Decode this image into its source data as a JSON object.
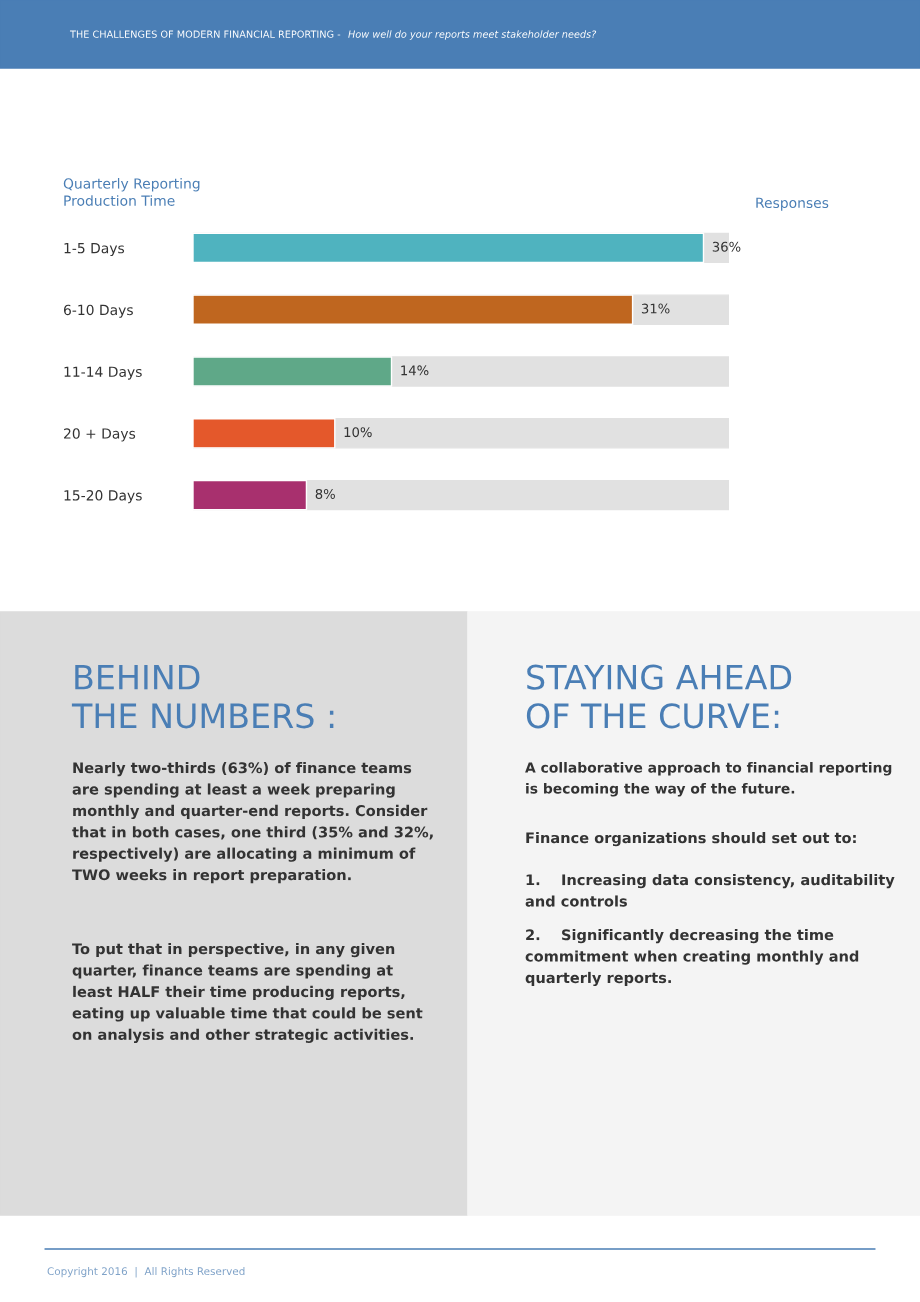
{
  "chart_data": {
    "type": "bar",
    "orientation": "horizontal",
    "title": "THE CHALLENGES OF MODERN FINANCIAL REPORTING -",
    "subtitle": "How well do your reports meet stakeholder needs?",
    "ylabel": "Quarterly Reporting\nProduction Time",
    "y2label": "Responses",
    "categories": [
      "1-5 Days",
      "6-10 Days",
      "11-14 Days",
      "20 + Days",
      "15-20 Days"
    ],
    "series": [
      {
        "colors": [
          "#4fb3bf",
          "#bf661f",
          "#5fa888",
          "#e4582b",
          "#a8306e"
        ],
        "values": [
          36,
          31,
          14,
          10,
          8
        ],
        "value_labels": [
          "36%",
          "31%",
          "14%",
          "10%",
          "8%"
        ]
      }
    ],
    "tick_labels": "y",
    "annotations": [
      "BEHIND\nTHE NUMBERS :",
      "Nearly two-thirds (63%) of finance teams\nare spending at least a week preparing\nmonthly and quarter-end reports. Consider\nthat in both cases, one third (35% and 32%,\nrespectively) are allocating a minimum of\nTWO weeks in report preparation.",
      "To put that in perspective, in any given\nquarter, finance teams are spending at\nleast HALF their time producing reports,\neating up valuable time that could be sent\non analysis and other strategic activities.",
      "STAYING AHEAD\nOF THE CURVE:",
      "A collaborative approach to financial reporting\nis becoming the way of the future.",
      "Finance organizations should set out to:",
      "1.    Increasing data consistency, auditability\nand controls",
      "2.    Significantly decreasing the time\ncommitment when creating monthly and\nquarterly reports.",
      "Copyright 2016  |  All Rights Reserved"
    ]
  }
}
